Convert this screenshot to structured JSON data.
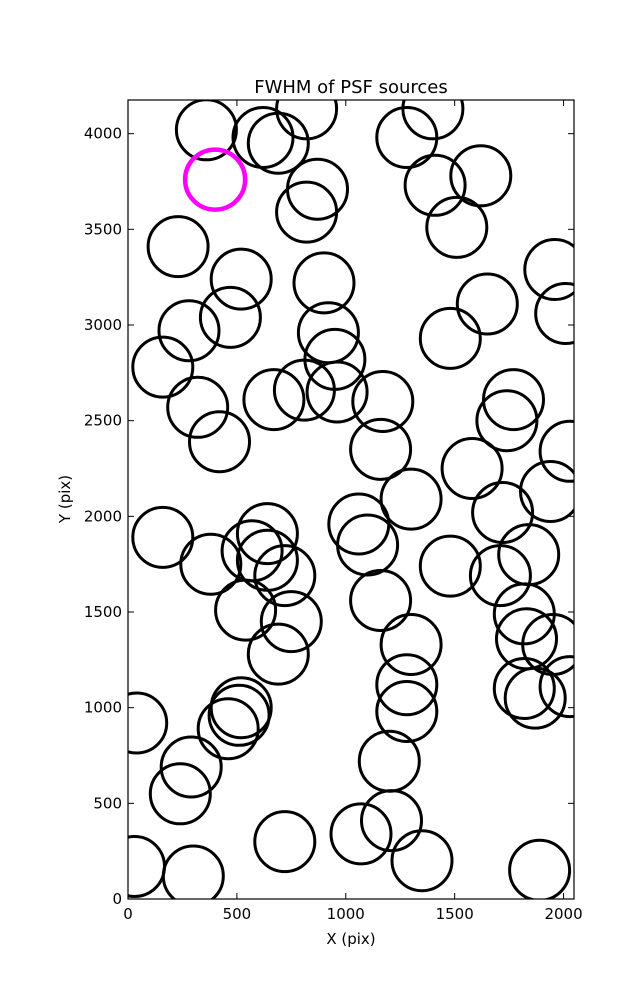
{
  "chart_data": {
    "type": "scatter",
    "title": "FWHM of PSF sources",
    "xlabel": "X (pix)",
    "ylabel": "Y (pix)",
    "xlim": [
      0,
      2048
    ],
    "ylim": [
      0,
      4176
    ],
    "grid": false,
    "marker": "open-circle",
    "colors": {
      "normal": "#000000",
      "highlight": "#ff00ff"
    },
    "x_ticks": [
      0,
      500,
      1000,
      1500,
      2000
    ],
    "x_tick_labels": [
      "0",
      "500",
      "1000",
      "1500",
      "2000"
    ],
    "y_ticks": [
      0,
      500,
      1000,
      1500,
      2000,
      2500,
      3000,
      3500,
      4000
    ],
    "y_tick_labels": [
      "0",
      "500",
      "1000",
      "1500",
      "2000",
      "2500",
      "3000",
      "3500",
      "4000"
    ],
    "series": [
      {
        "color": "#000000",
        "points": [
          {
            "x": 360,
            "y": 4020
          },
          {
            "x": 620,
            "y": 3980
          },
          {
            "x": 690,
            "y": 3950
          },
          {
            "x": 820,
            "y": 4130
          },
          {
            "x": 1280,
            "y": 3980
          },
          {
            "x": 1400,
            "y": 4130
          },
          {
            "x": 870,
            "y": 3710
          },
          {
            "x": 820,
            "y": 3590
          },
          {
            "x": 1410,
            "y": 3730
          },
          {
            "x": 1620,
            "y": 3780
          },
          {
            "x": 1510,
            "y": 3510
          },
          {
            "x": 230,
            "y": 3410
          },
          {
            "x": 520,
            "y": 3240
          },
          {
            "x": 470,
            "y": 3040
          },
          {
            "x": 280,
            "y": 2970
          },
          {
            "x": 900,
            "y": 3220
          },
          {
            "x": 920,
            "y": 2960
          },
          {
            "x": 950,
            "y": 2820
          },
          {
            "x": 960,
            "y": 2650
          },
          {
            "x": 810,
            "y": 2660
          },
          {
            "x": 670,
            "y": 2610
          },
          {
            "x": 160,
            "y": 2780
          },
          {
            "x": 320,
            "y": 2570
          },
          {
            "x": 420,
            "y": 2390
          },
          {
            "x": 1960,
            "y": 3290
          },
          {
            "x": 2010,
            "y": 3060
          },
          {
            "x": 1650,
            "y": 3110
          },
          {
            "x": 1480,
            "y": 2930
          },
          {
            "x": 1770,
            "y": 2610
          },
          {
            "x": 1740,
            "y": 2500
          },
          {
            "x": 1170,
            "y": 2600
          },
          {
            "x": 1160,
            "y": 2350
          },
          {
            "x": 1580,
            "y": 2250
          },
          {
            "x": 2030,
            "y": 2340
          },
          {
            "x": 1940,
            "y": 2130
          },
          {
            "x": 1720,
            "y": 2020
          },
          {
            "x": 1300,
            "y": 2090
          },
          {
            "x": 1060,
            "y": 1960
          },
          {
            "x": 1100,
            "y": 1850
          },
          {
            "x": 160,
            "y": 1890
          },
          {
            "x": 380,
            "y": 1750
          },
          {
            "x": 570,
            "y": 1820
          },
          {
            "x": 640,
            "y": 1910
          },
          {
            "x": 640,
            "y": 1770
          },
          {
            "x": 720,
            "y": 1690
          },
          {
            "x": 540,
            "y": 1510
          },
          {
            "x": 750,
            "y": 1450
          },
          {
            "x": 690,
            "y": 1280
          },
          {
            "x": 1480,
            "y": 1740
          },
          {
            "x": 1710,
            "y": 1690
          },
          {
            "x": 1840,
            "y": 1800
          },
          {
            "x": 1820,
            "y": 1490
          },
          {
            "x": 1830,
            "y": 1360
          },
          {
            "x": 1950,
            "y": 1330
          },
          {
            "x": 2030,
            "y": 1110
          },
          {
            "x": 1820,
            "y": 1100
          },
          {
            "x": 1870,
            "y": 1050
          },
          {
            "x": 1160,
            "y": 1560
          },
          {
            "x": 1300,
            "y": 1330
          },
          {
            "x": 1280,
            "y": 1120
          },
          {
            "x": 1280,
            "y": 980
          },
          {
            "x": 40,
            "y": 920
          },
          {
            "x": 520,
            "y": 1000
          },
          {
            "x": 510,
            "y": 960
          },
          {
            "x": 460,
            "y": 890
          },
          {
            "x": 290,
            "y": 690
          },
          {
            "x": 240,
            "y": 550
          },
          {
            "x": 1200,
            "y": 720
          },
          {
            "x": 1210,
            "y": 410
          },
          {
            "x": 1070,
            "y": 340
          },
          {
            "x": 1350,
            "y": 200
          },
          {
            "x": 720,
            "y": 300
          },
          {
            "x": 300,
            "y": 120
          },
          {
            "x": 30,
            "y": 170
          },
          {
            "x": 1890,
            "y": 150
          }
        ]
      },
      {
        "color": "#ff00ff",
        "points": [
          {
            "x": 400,
            "y": 3760
          }
        ]
      }
    ]
  }
}
